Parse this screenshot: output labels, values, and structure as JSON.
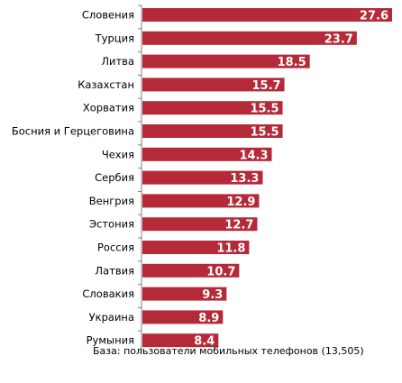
{
  "chart_data": {
    "type": "bar",
    "orientation": "horizontal",
    "categories": [
      "Словения",
      "Турция",
      "Литва",
      "Казахстан",
      "Хорватия",
      "Босния и Герцеговина",
      "Чехия",
      "Сербия",
      "Венгрия",
      "Эстония",
      "Россия",
      "Латвия",
      "Словакия",
      "Украина",
      "Румыния"
    ],
    "values": [
      27.6,
      23.7,
      18.5,
      15.7,
      15.5,
      15.5,
      14.3,
      13.3,
      12.9,
      12.7,
      11.8,
      10.7,
      9.3,
      8.9,
      8.4
    ],
    "value_labels": [
      "27.6",
      "23.7",
      "18.5",
      "15.7",
      "15.5",
      "15.5",
      "14.3",
      "13.3",
      "12.9",
      "12.7",
      "11.8",
      "10.7",
      "9.3",
      "8.9",
      "8.4"
    ],
    "bar_color": "#b52a38",
    "axis_color": "#808080",
    "grid": false,
    "legend": "none",
    "title": "",
    "xlabel": "",
    "ylabel": ""
  },
  "footnote": "База: пользователи мобильных телефонов  (13,505)"
}
